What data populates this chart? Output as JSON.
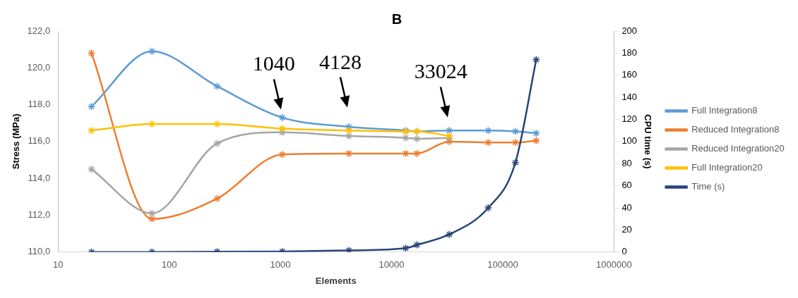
{
  "chart_data": {
    "type": "line",
    "title": "B",
    "xlabel": "Elements",
    "ylabel": "Stress (MPa)",
    "y2label": "CPU time (s)",
    "log": "x",
    "grid": false,
    "legend": "right",
    "marker": "cross",
    "line_style": "solid",
    "x": [
      20,
      70,
      270,
      1040,
      4128,
      13400,
      16900,
      33024,
      74000,
      130000,
      200000
    ],
    "xlim": [
      10,
      1000000
    ],
    "xticks": [
      10,
      100,
      1000,
      10000,
      100000,
      1000000
    ],
    "ylim": [
      110,
      122
    ],
    "yticks": [
      {
        "value": 110,
        "label": "110,0"
      },
      {
        "value": 112,
        "label": "112,0"
      },
      {
        "value": 114,
        "label": "114,0"
      },
      {
        "value": 116,
        "label": "116,0"
      },
      {
        "value": 118,
        "label": "118,0"
      },
      {
        "value": 120,
        "label": "120,0"
      },
      {
        "value": 122,
        "label": "122,0"
      }
    ],
    "y2lim": [
      0,
      200
    ],
    "y2ticks": [
      0,
      20,
      40,
      60,
      80,
      100,
      120,
      140,
      160,
      180,
      200
    ],
    "series": [
      {
        "name": "Full Integration8",
        "color": "#5b9bd5",
        "axis": "y",
        "values": [
          117.9,
          120.9,
          119.0,
          117.3,
          116.8,
          116.6,
          116.55,
          116.6,
          116.6,
          116.55,
          116.45
        ]
      },
      {
        "name": "Reduced Integration8",
        "color": "#ed7d31",
        "axis": "y",
        "values": [
          120.8,
          111.8,
          112.9,
          115.3,
          115.35,
          115.35,
          115.35,
          116.0,
          115.95,
          115.95,
          116.05
        ]
      },
      {
        "name": "Reduced Integration20",
        "color": "#a5a5a5",
        "axis": "y",
        "values": [
          114.5,
          112.1,
          115.9,
          116.5,
          116.3,
          116.2,
          116.15,
          116.2,
          null,
          null,
          null
        ]
      },
      {
        "name": "Full Integration20",
        "color": "#ffc000",
        "axis": "y",
        "values": [
          116.6,
          116.95,
          116.95,
          116.7,
          116.6,
          116.55,
          116.55,
          116.3,
          null,
          null,
          null
        ]
      },
      {
        "name": "Time (s)",
        "color": "#264478",
        "axis": "y2",
        "values": [
          0,
          0,
          0.3,
          0.5,
          1.5,
          3.5,
          6.5,
          16,
          40,
          81,
          174
        ]
      }
    ],
    "annotations": [
      {
        "text": "1040",
        "x": 1040,
        "y": 116.7
      },
      {
        "text": "4128",
        "x": 4128,
        "y": 116.8
      },
      {
        "text": "33024",
        "x": 33024,
        "y": 116.3
      }
    ]
  }
}
